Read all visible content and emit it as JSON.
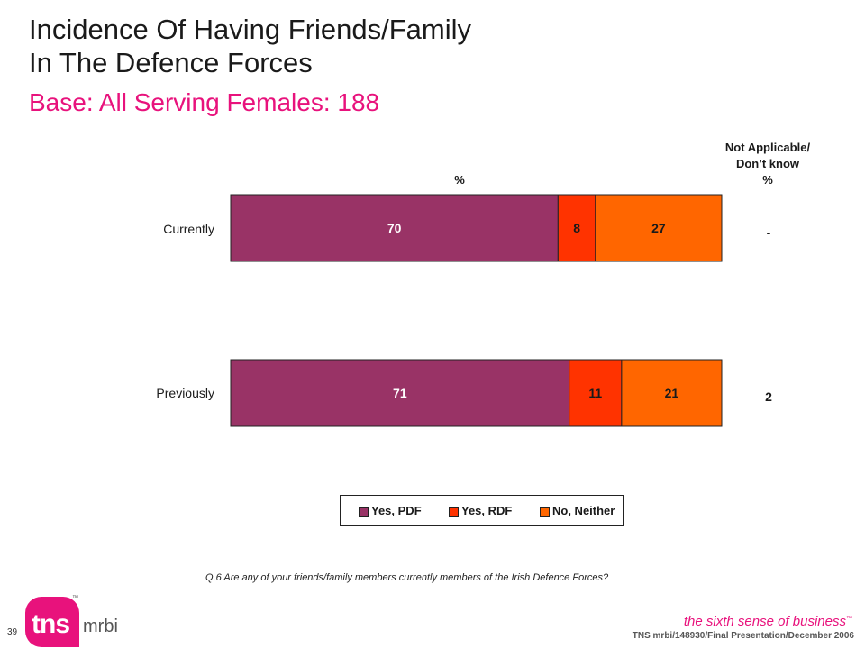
{
  "slide": {
    "title_line1": "Incidence Of Having Friends/Family",
    "title_line2": "In The Defence Forces",
    "subtitle": "Base:  All Serving Females:  188",
    "question": "Q.6   Are any of your friends/family members currently members of the Irish Defence Forces?",
    "page_number": "39",
    "footer": "TNS mrbi/148930/Final Presentation/December 2006",
    "tagline": "the sixth sense of business",
    "tagline_tm": "™",
    "logo_main": "tns",
    "logo_sub": "mrbi",
    "logo_tm": "™"
  },
  "headers": {
    "percent": "%",
    "na_line1": "Not Applicable/",
    "na_line2": "Don’t know",
    "na_line3": "%"
  },
  "chart_data": {
    "type": "bar",
    "orientation": "horizontal",
    "stacked": true,
    "categories": [
      "Currently",
      "Previously"
    ],
    "series": [
      {
        "name": "Yes, PDF",
        "values": [
          70,
          71
        ],
        "color": "#993366"
      },
      {
        "name": "Yes, RDF",
        "values": [
          8,
          11
        ],
        "color": "#ff3300"
      },
      {
        "name": "No, Neither",
        "values": [
          27,
          21
        ],
        "color": "#ff6600"
      }
    ],
    "not_applicable": [
      "-",
      "2"
    ],
    "legend_position": "bottom",
    "grid": false
  }
}
